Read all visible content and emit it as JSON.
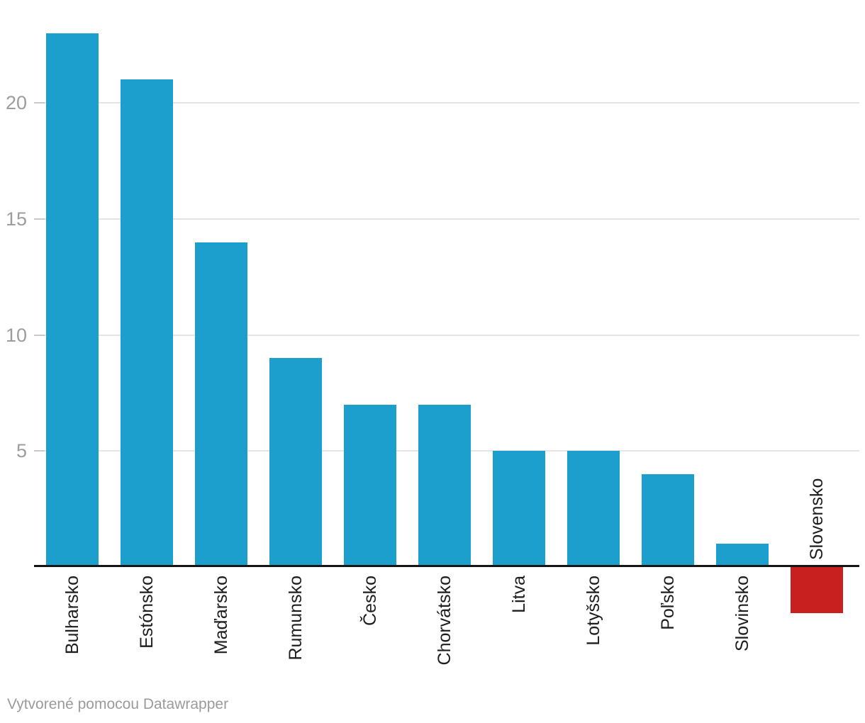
{
  "chart_data": {
    "type": "bar",
    "categories": [
      "Bulharsko",
      "Estónsko",
      "Maďarsko",
      "Rumunsko",
      "Česko",
      "Chorvátsko",
      "Litva",
      "Lotyšsko",
      "Poľsko",
      "Slovinsko",
      "Slovensko"
    ],
    "values": [
      23,
      21,
      14,
      9,
      7,
      7,
      5,
      5,
      4,
      1,
      -2
    ],
    "highlight_category": "Slovensko",
    "title": "",
    "xlabel": "",
    "ylabel": "",
    "y_ticks": [
      5,
      10,
      15,
      20
    ],
    "ylim": [
      -2.5,
      23.5
    ],
    "grid": true,
    "legend": "none",
    "colors": {
      "bar": "#1c9fcc",
      "highlight": "#c7201f",
      "axis": "#151515",
      "gridline": "#e4e4e4",
      "tick_dash": "#c9c9c9",
      "tick_text": "#9d9d9d",
      "label_text": "#1d1d1d",
      "footer_text": "#9b9b9b"
    }
  },
  "footer": {
    "credit": "Vytvorené pomocou Datawrapper"
  }
}
